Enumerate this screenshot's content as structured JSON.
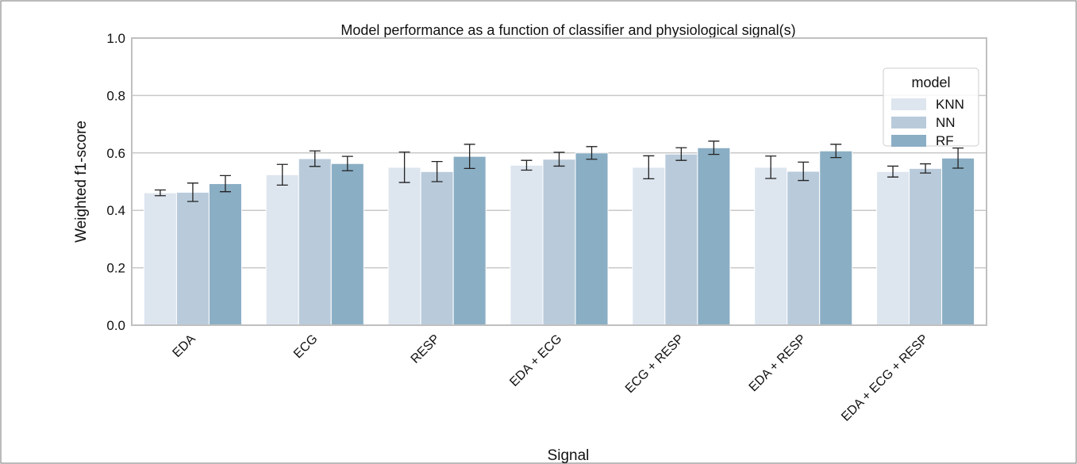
{
  "chart_data": {
    "type": "bar",
    "title": "Model performance as a function of classifier and physiological signal(s)",
    "x_label": "Signal",
    "y_label": "Weighted f1-score",
    "categories": [
      "EDA",
      "ECG",
      "RESP",
      "EDA + ECG",
      "ECG + RESP",
      "EDA + RESP",
      "EDA + ECG + RESP"
    ],
    "series": [
      {
        "name": "KNN",
        "color": "#dde5ef",
        "values": [
          0.461,
          0.524,
          0.55,
          0.557,
          0.55,
          0.55,
          0.535
        ],
        "errors": [
          0.01,
          0.036,
          0.053,
          0.017,
          0.04,
          0.039,
          0.019
        ]
      },
      {
        "name": "NN",
        "color": "#b9cbdb",
        "values": [
          0.463,
          0.58,
          0.535,
          0.578,
          0.596,
          0.536,
          0.546
        ],
        "errors": [
          0.032,
          0.027,
          0.035,
          0.024,
          0.022,
          0.032,
          0.016
        ]
      },
      {
        "name": "RF",
        "color": "#8aaec4",
        "values": [
          0.493,
          0.563,
          0.588,
          0.6,
          0.618,
          0.607,
          0.582
        ],
        "errors": [
          0.028,
          0.025,
          0.042,
          0.022,
          0.023,
          0.023,
          0.035
        ]
      }
    ],
    "legend_title": "model",
    "legend_position": "upper right",
    "ylim": [
      0,
      1
    ],
    "yticks": [
      {
        "value": 0,
        "label": "0.0"
      },
      {
        "value": 0.2,
        "label": "0.2"
      },
      {
        "value": 0.4,
        "label": "0.4"
      },
      {
        "value": 0.6,
        "label": "0.6"
      },
      {
        "value": 0.8,
        "label": "0.8"
      },
      {
        "value": 1,
        "label": "1.0"
      }
    ],
    "grid": true
  }
}
